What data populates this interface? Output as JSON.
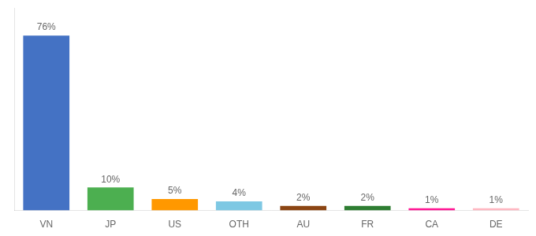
{
  "chart_data": {
    "type": "bar",
    "categories": [
      "VN",
      "JP",
      "US",
      "OTH",
      "AU",
      "FR",
      "CA",
      "DE"
    ],
    "values": [
      76,
      10,
      5,
      4,
      2,
      2,
      1,
      1
    ],
    "value_labels": [
      "76%",
      "10%",
      "5%",
      "4%",
      "2%",
      "2%",
      "1%",
      "1%"
    ],
    "colors": [
      "#4472C4",
      "#4CAF50",
      "#FF9800",
      "#7EC8E3",
      "#8B4513",
      "#2E7D32",
      "#FF1493",
      "#FFB6C1"
    ],
    "ylim": [
      0,
      88
    ],
    "grid": false,
    "data_labels": true,
    "tick_labels": "x"
  }
}
